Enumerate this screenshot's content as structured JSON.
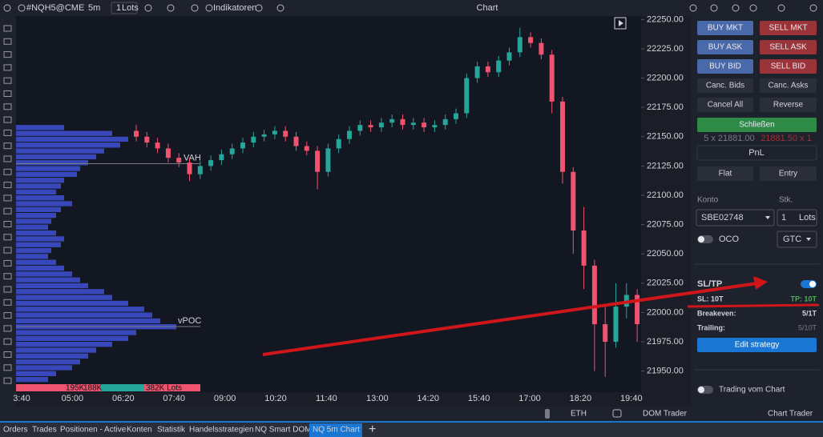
{
  "toolbar": {
    "symbol": "#NQH5@CME",
    "interval": "5m",
    "lots": "1",
    "lots_unit": "Lots",
    "indicators": "Indikatoren",
    "window_title": "Chart"
  },
  "chart_data": {
    "type": "candlestick",
    "ylim": [
      21932,
      22253
    ],
    "yticks": [
      {
        "value": 21950,
        "label": "21950.00"
      },
      {
        "value": 21975,
        "label": "21975.00"
      },
      {
        "value": 22000,
        "label": "22000.00"
      },
      {
        "value": 22025,
        "label": "22025.00"
      },
      {
        "value": 22050,
        "label": "22050.00"
      },
      {
        "value": 22075,
        "label": "22075.00"
      },
      {
        "value": 22100,
        "label": "22100.00"
      },
      {
        "value": 22125,
        "label": "22125.00"
      },
      {
        "value": 22150,
        "label": "22150.00"
      },
      {
        "value": 22175,
        "label": "22175.00"
      },
      {
        "value": 22200,
        "label": "22200.00"
      },
      {
        "value": 22225,
        "label": "22225.00"
      },
      {
        "value": 22250,
        "label": "22250.00"
      }
    ],
    "xticks": [
      "3:40",
      "05:00",
      "06:20",
      "07:40",
      "09:00",
      "10:20",
      "11:40",
      "13:00",
      "14:20",
      "15:40",
      "17:00",
      "18:20",
      "19:40"
    ],
    "candles": [
      [
        22155,
        22160,
        22146,
        22150
      ],
      [
        22150,
        22154,
        22141,
        22145
      ],
      [
        22145,
        22149,
        22136,
        22140
      ],
      [
        22140,
        22144,
        22128,
        22132
      ],
      [
        22132,
        22136,
        22124,
        22128
      ],
      [
        22128,
        22132,
        22112,
        22118
      ],
      [
        22118,
        22129,
        22114,
        22125
      ],
      [
        22125,
        22134,
        22121,
        22130
      ],
      [
        22130,
        22139,
        22126,
        22135
      ],
      [
        22135,
        22144,
        22131,
        22140
      ],
      [
        22140,
        22149,
        22136,
        22145
      ],
      [
        22145,
        22154,
        22141,
        22150
      ],
      [
        22150,
        22156,
        22146,
        22152
      ],
      [
        22152,
        22159,
        22148,
        22155
      ],
      [
        22155,
        22159,
        22146,
        22150
      ],
      [
        22150,
        22154,
        22138,
        22142
      ],
      [
        22142,
        22146,
        22134,
        22138
      ],
      [
        22138,
        22142,
        22105,
        22120
      ],
      [
        22120,
        22144,
        22116,
        22140
      ],
      [
        22140,
        22152,
        22136,
        22148
      ],
      [
        22148,
        22159,
        22144,
        22155
      ],
      [
        22155,
        22164,
        22151,
        22160
      ],
      [
        22160,
        22164,
        22154,
        22158
      ],
      [
        22158,
        22166,
        22154,
        22162
      ],
      [
        22162,
        22169,
        22158,
        22165
      ],
      [
        22165,
        22169,
        22156,
        22160
      ],
      [
        22160,
        22166,
        22156,
        22162
      ],
      [
        22162,
        22166,
        22154,
        22158
      ],
      [
        22158,
        22164,
        22154,
        22160
      ],
      [
        22160,
        22169,
        22156,
        22165
      ],
      [
        22165,
        22174,
        22161,
        22170
      ],
      [
        22170,
        22204,
        22166,
        22200
      ],
      [
        22200,
        22214,
        22196,
        22210
      ],
      [
        22210,
        22214,
        22201,
        22205
      ],
      [
        22205,
        22219,
        22201,
        22215
      ],
      [
        22215,
        22226,
        22211,
        22222
      ],
      [
        22222,
        22243,
        22218,
        22235
      ],
      [
        22235,
        22239,
        22226,
        22230
      ],
      [
        22230,
        22234,
        22216,
        22220
      ],
      [
        22220,
        22224,
        22170,
        22180
      ],
      [
        22180,
        22184,
        22110,
        22120
      ],
      [
        22120,
        22124,
        22050,
        22070
      ],
      [
        22070,
        22090,
        22020,
        22040
      ],
      [
        22040,
        22045,
        21950,
        21990
      ],
      [
        21990,
        22005,
        21945,
        21975
      ],
      [
        21975,
        22025,
        21970,
        22005
      ],
      [
        22005,
        22025,
        21995,
        22015
      ],
      [
        22015,
        22020,
        21975,
        21990
      ]
    ],
    "up_color": "#26a69a",
    "down_color": "#ef5370",
    "profile_color": "#3f51d6",
    "profile": [
      30,
      60,
      70,
      65,
      55,
      50,
      45,
      40,
      38,
      30,
      28,
      25,
      30,
      35,
      28,
      25,
      22,
      20,
      25,
      30,
      28,
      22,
      20,
      25,
      30,
      35,
      40,
      45,
      55,
      60,
      70,
      80,
      85,
      90,
      100,
      75,
      70,
      60,
      50,
      45,
      40,
      35,
      25,
      20
    ],
    "vah": {
      "label": "VAH",
      "value": 22127
    },
    "vpoc": {
      "label": "vPOC",
      "value": 21988
    },
    "profile_footer": [
      "195K",
      "188K",
      "382K Lots"
    ]
  },
  "trader": {
    "buy_mkt": "BUY MKT",
    "sell_mkt": "SELL MKT",
    "buy_ask": "BUY ASK",
    "sell_ask": "SELL ASK",
    "buy_bid": "BUY BID",
    "sell_bid": "SELL BID",
    "canc_bids": "Canc. Bids",
    "canc_asks": "Canc. Asks",
    "cancel_all": "Cancel All",
    "reverse": "Reverse",
    "close": "Schließen",
    "bid": "5 x 21881.00",
    "ask": "21881.50 x 1",
    "pnl": "PnL",
    "flat": "Flat",
    "entry": "Entry",
    "account_label": "Konto",
    "qty_label": "Stk.",
    "account": "SBE02748",
    "qty": "1",
    "qty_unit": "Lots",
    "oco": "OCO",
    "tif": "GTC",
    "sltp": "SL/TP",
    "sl": "SL: 10T",
    "tp": "TP: 10T",
    "breakeven_label": "Breakeven:",
    "breakeven": "5/1T",
    "trailing_label": "Trailing:",
    "trailing": "5/10T",
    "edit": "Edit strategy",
    "trade_from_chart": "Trading vom Chart"
  },
  "bottom_bar": {
    "session": "ETH",
    "dom": "DOM Trader",
    "chart_trader": "Chart Trader"
  },
  "tabs": [
    "Orders",
    "Trades",
    "Positionen - Active",
    "Konten",
    "Statistik",
    "Handelsstrategien",
    "NQ Smart DOM",
    "NQ 5m Chart"
  ]
}
